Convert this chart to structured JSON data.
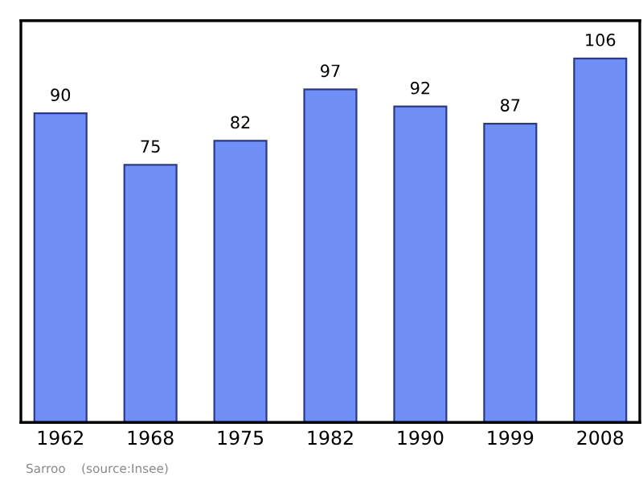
{
  "chart_data": {
    "type": "bar",
    "categories": [
      "1962",
      "1968",
      "1975",
      "1982",
      "1990",
      "1999",
      "2008"
    ],
    "values": [
      90,
      75,
      82,
      97,
      92,
      87,
      106
    ],
    "color": "#6f8ff7",
    "data_labels": true,
    "ylim": [
      0,
      117
    ],
    "tick_labels": "x",
    "grid": false,
    "annotations": [
      "Sarroo    (source:Insee)"
    ]
  }
}
